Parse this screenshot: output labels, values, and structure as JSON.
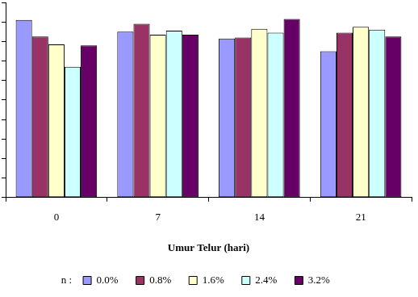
{
  "chart_data": {
    "type": "bar",
    "x_label": "Umur Telur (hari)",
    "annotations": [
      "n :"
    ],
    "categories": [
      "0",
      "7",
      "14",
      "21"
    ],
    "series": [
      {
        "name": "0.0%",
        "color": "#9999ff",
        "values": [
          9.1,
          8.5,
          8.15,
          7.5
        ]
      },
      {
        "name": "0.8%",
        "color": "#993366",
        "values": [
          8.25,
          8.9,
          8.2,
          8.45
        ]
      },
      {
        "name": "1.6%",
        "color": "#ffffcc",
        "values": [
          7.85,
          8.35,
          8.65,
          8.75
        ]
      },
      {
        "name": "2.4%",
        "color": "#ccffff",
        "values": [
          6.7,
          8.55,
          8.45,
          8.6
        ]
      },
      {
        "name": "3.2%",
        "color": "#660066",
        "values": [
          7.8,
          8.35,
          9.15,
          8.25
        ]
      }
    ],
    "ylim": [
      0,
      10
    ],
    "yticks": [
      0,
      1,
      2,
      3,
      4,
      5,
      6,
      7,
      8,
      9,
      10
    ],
    "grid": false,
    "legend": "bottom",
    "tick_labels": "x"
  }
}
